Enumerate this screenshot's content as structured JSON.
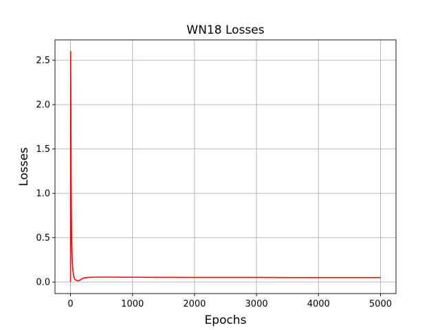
{
  "chart_data": {
    "type": "line",
    "title": "WN18 Losses",
    "xlabel": "Epochs",
    "ylabel": "Losses",
    "xlim": [
      -250,
      5250
    ],
    "ylim": [
      -0.13,
      2.73
    ],
    "xticks": [
      0,
      1000,
      2000,
      3000,
      4000,
      5000
    ],
    "xtick_labels": [
      "0",
      "1000",
      "2000",
      "3000",
      "4000",
      "5000"
    ],
    "yticks": [
      0.0,
      0.5,
      1.0,
      1.5,
      2.0,
      2.5
    ],
    "ytick_labels": [
      "0.0",
      "0.5",
      "1.0",
      "1.5",
      "2.0",
      "2.5"
    ],
    "grid": true,
    "series": [
      {
        "color": "#ff0000",
        "x": [
          0,
          3,
          6,
          10,
          15,
          20,
          30,
          40,
          55,
          70,
          90,
          110,
          130,
          150,
          180,
          210,
          250,
          300,
          400,
          500,
          700,
          1000,
          1500,
          2000,
          2500,
          3000,
          3500,
          4000,
          4500,
          5000
        ],
        "y": [
          0.0,
          2.6,
          2.0,
          1.2,
          0.7,
          0.42,
          0.22,
          0.12,
          0.06,
          0.03,
          0.02,
          0.015,
          0.015,
          0.02,
          0.035,
          0.045,
          0.05,
          0.053,
          0.055,
          0.055,
          0.055,
          0.054,
          0.053,
          0.052,
          0.052,
          0.052,
          0.051,
          0.051,
          0.051,
          0.051
        ]
      }
    ]
  }
}
